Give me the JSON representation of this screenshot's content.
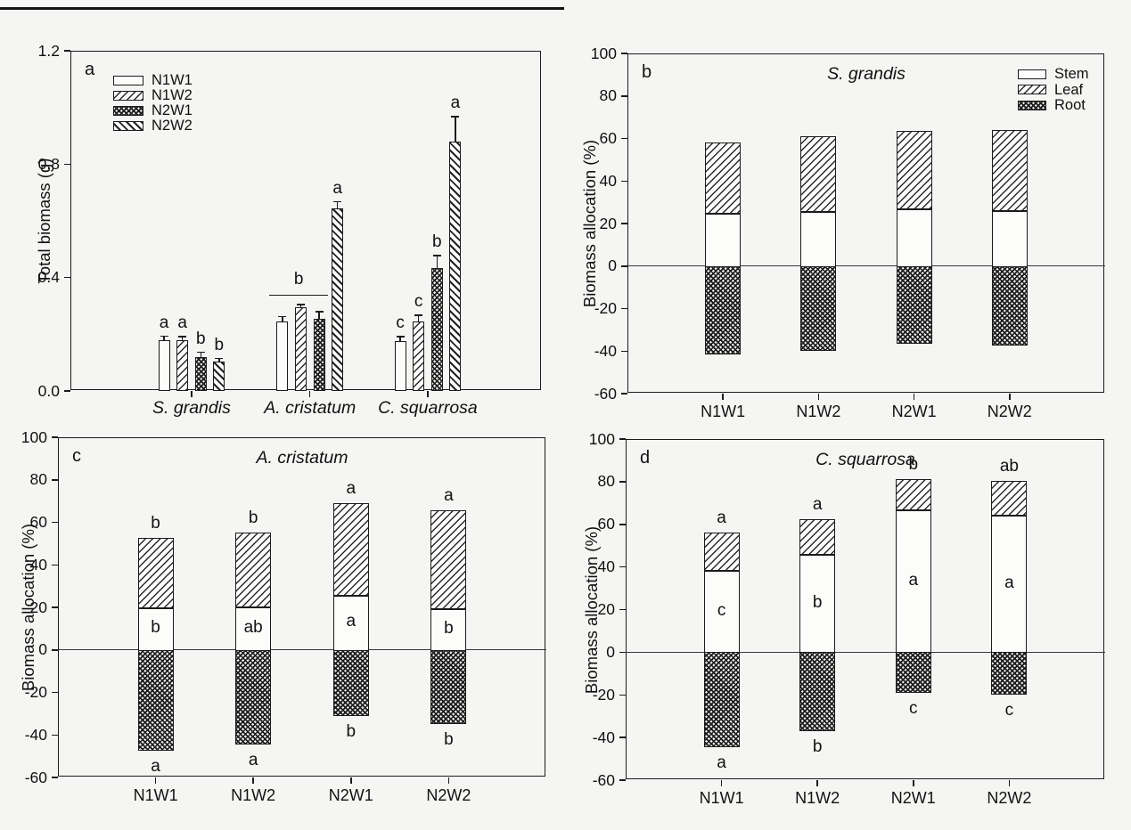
{
  "figure": {
    "background": "#f5f5f3",
    "line_color": "#1b1b1b"
  },
  "chart_data": [
    {
      "panel_label": "a",
      "type": "bar",
      "title": "",
      "ylabel": "Total biomass (g)",
      "ylim": [
        0,
        1.2
      ],
      "yticks": [
        0,
        0.4,
        0.8,
        1.2
      ],
      "ytick_labels": [
        "0.0",
        "0.4",
        "0.8",
        "1.2"
      ],
      "categories": [
        "S. grandis",
        "A. cristatum",
        "C. squarrosa"
      ],
      "legend": {
        "position": "top-left",
        "entries": [
          {
            "label": "N1W1",
            "pattern": "plain"
          },
          {
            "label": "N1W2",
            "pattern": "hatch-fwd"
          },
          {
            "label": "N2W1",
            "pattern": "crosshatch"
          },
          {
            "label": "N2W2",
            "pattern": "hatch-bwd"
          }
        ]
      },
      "series": [
        {
          "name": "N1W1",
          "pattern": "plain",
          "values": [
            0.18,
            0.245,
            0.175
          ],
          "errors": [
            0.013,
            0.018,
            0.016
          ]
        },
        {
          "name": "N1W2",
          "pattern": "hatch-fwd",
          "values": [
            0.18,
            0.295,
            0.245
          ],
          "errors": [
            0.011,
            0.01,
            0.022
          ]
        },
        {
          "name": "N2W1",
          "pattern": "crosshatch",
          "values": [
            0.12,
            0.255,
            0.435
          ],
          "errors": [
            0.016,
            0.024,
            0.042
          ]
        },
        {
          "name": "N2W2",
          "pattern": "hatch-bwd",
          "values": [
            0.105,
            0.645,
            0.88
          ],
          "errors": [
            0.009,
            0.022,
            0.088
          ]
        }
      ],
      "sig_letters": [
        [
          "a",
          "a",
          "b",
          "b"
        ],
        [
          "",
          "",
          "",
          "a"
        ],
        [
          "c",
          "c",
          "b",
          "a"
        ]
      ],
      "bracket": {
        "category_index": 1,
        "bar_start": 0,
        "bar_end": 2,
        "y": 0.34,
        "label": "b"
      }
    },
    {
      "panel_label": "b",
      "type": "stacked-bar",
      "title": "S. grandis",
      "ylabel": "Biomass allocation (%)",
      "ylim": [
        -60,
        100
      ],
      "yticks": [
        100,
        80,
        60,
        40,
        20,
        0,
        -20,
        -40,
        -60
      ],
      "ytick_labels": [
        "100",
        "80",
        "60",
        "40",
        "20",
        "0",
        "-20",
        "-40",
        "-60"
      ],
      "categories": [
        "N1W1",
        "N1W2",
        "N2W1",
        "N2W2"
      ],
      "legend": {
        "position": "top-right",
        "entries": [
          {
            "label": "Stem",
            "pattern": "plain"
          },
          {
            "label": "Leaf",
            "pattern": "hatch-fwd"
          },
          {
            "label": "Root",
            "pattern": "crosshatch"
          }
        ]
      },
      "series": [
        {
          "name": "Stem",
          "pattern": "plain",
          "values": [
            24.5,
            25.5,
            26.5,
            26
          ]
        },
        {
          "name": "Leaf",
          "pattern": "hatch-fwd",
          "values": [
            33.5,
            35.5,
            37,
            38
          ]
        },
        {
          "name": "Root",
          "pattern": "crosshatch",
          "values": [
            -41.5,
            -40,
            -36.5,
            -37.5
          ]
        }
      ],
      "letters": {
        "above": [
          "",
          "",
          "",
          ""
        ],
        "stem": [
          "",
          "",
          "",
          ""
        ],
        "below": [
          "",
          "",
          "",
          ""
        ]
      }
    },
    {
      "panel_label": "c",
      "type": "stacked-bar",
      "title": "A. cristatum",
      "ylabel": "Biomass allocation (%)",
      "ylim": [
        -60,
        100
      ],
      "yticks": [
        100,
        80,
        60,
        40,
        20,
        0,
        -20,
        -40,
        -60
      ],
      "ytick_labels": [
        "100",
        "80",
        "60",
        "40",
        "20",
        "0",
        "-20",
        "-40",
        "-60"
      ],
      "categories": [
        "N1W1",
        "N1W2",
        "N2W1",
        "N2W2"
      ],
      "legend": null,
      "series": [
        {
          "name": "Stem",
          "pattern": "plain",
          "values": [
            19.5,
            20,
            25.5,
            19
          ]
        },
        {
          "name": "Leaf",
          "pattern": "hatch-fwd",
          "values": [
            33,
            35,
            43.5,
            46.5
          ]
        },
        {
          "name": "Root",
          "pattern": "crosshatch",
          "values": [
            -47.5,
            -44.5,
            -31,
            -35
          ]
        }
      ],
      "letters": {
        "above": [
          "b",
          "b",
          "a",
          "a"
        ],
        "stem": [
          "b",
          "ab",
          "a",
          "b"
        ],
        "below": [
          "a",
          "a",
          "b",
          "b"
        ]
      }
    },
    {
      "panel_label": "d",
      "type": "stacked-bar",
      "title": "C. squarrosa",
      "ylabel": "Biomass allocation (%)",
      "ylim": [
        -60,
        100
      ],
      "yticks": [
        100,
        80,
        60,
        40,
        20,
        0,
        -20,
        -40,
        -60
      ],
      "ytick_labels": [
        "100",
        "80",
        "60",
        "40",
        "20",
        "0",
        "-20",
        "-40",
        "-60"
      ],
      "categories": [
        "N1W1",
        "N1W2",
        "N2W1",
        "N2W2"
      ],
      "legend": null,
      "series": [
        {
          "name": "Stem",
          "pattern": "plain",
          "values": [
            38,
            45.5,
            66.5,
            64
          ]
        },
        {
          "name": "Leaf",
          "pattern": "hatch-fwd",
          "values": [
            18,
            17,
            14.5,
            16.5
          ]
        },
        {
          "name": "Root",
          "pattern": "crosshatch",
          "values": [
            -44.5,
            -37,
            -19,
            -20
          ]
        }
      ],
      "letters": {
        "above": [
          "a",
          "a",
          "b",
          "ab"
        ],
        "stem": [
          "c",
          "b",
          "a",
          "a"
        ],
        "below": [
          "a",
          "b",
          "c",
          "c"
        ]
      }
    }
  ]
}
